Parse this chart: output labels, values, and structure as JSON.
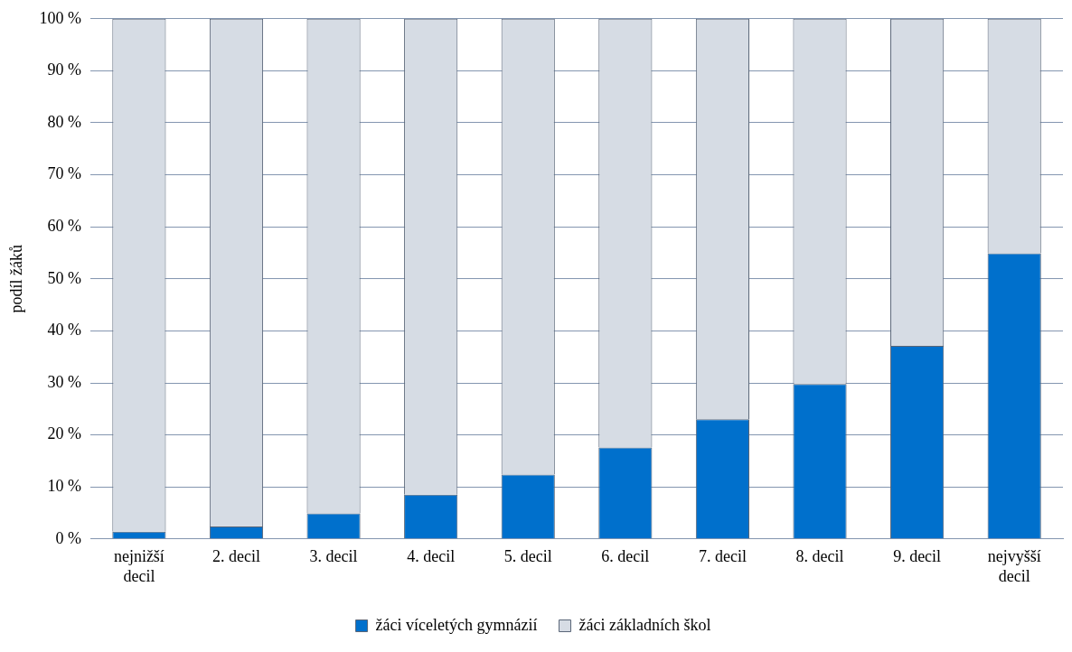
{
  "chart_data": {
    "type": "bar",
    "stacked": true,
    "ylabel": "podíl žáků",
    "categories": [
      "nejnižší decil",
      "2. decil",
      "3. decil",
      "4. decil",
      "5. decil",
      "6. decil",
      "7. decil",
      "8. decil",
      "9. decil",
      "nejvyšší decil"
    ],
    "series": [
      {
        "name": "žáci víceletých gymnázií",
        "color": "#0070cc",
        "values": [
          1.4,
          2.4,
          4.9,
          8.5,
          12.4,
          17.6,
          23.0,
          29.8,
          37.1,
          54.9
        ]
      },
      {
        "name": "žáci základních škol",
        "color": "#d6dce4",
        "values": [
          98.6,
          97.6,
          95.1,
          91.5,
          87.6,
          82.4,
          77.0,
          70.2,
          62.9,
          45.1
        ]
      }
    ],
    "ylim": [
      0,
      100
    ],
    "yticks": [
      {
        "value": 0,
        "label": "0 %"
      },
      {
        "value": 10,
        "label": "10 %"
      },
      {
        "value": 20,
        "label": "20 %"
      },
      {
        "value": 30,
        "label": "30 %"
      },
      {
        "value": 40,
        "label": "40 %"
      },
      {
        "value": 50,
        "label": "50 %"
      },
      {
        "value": 60,
        "label": "60 %"
      },
      {
        "value": 70,
        "label": "70 %"
      },
      {
        "value": 80,
        "label": "80 %"
      },
      {
        "value": 90,
        "label": "90 %"
      },
      {
        "value": 100,
        "label": "100 %"
      }
    ],
    "grid": "y",
    "legend": "bottom"
  }
}
